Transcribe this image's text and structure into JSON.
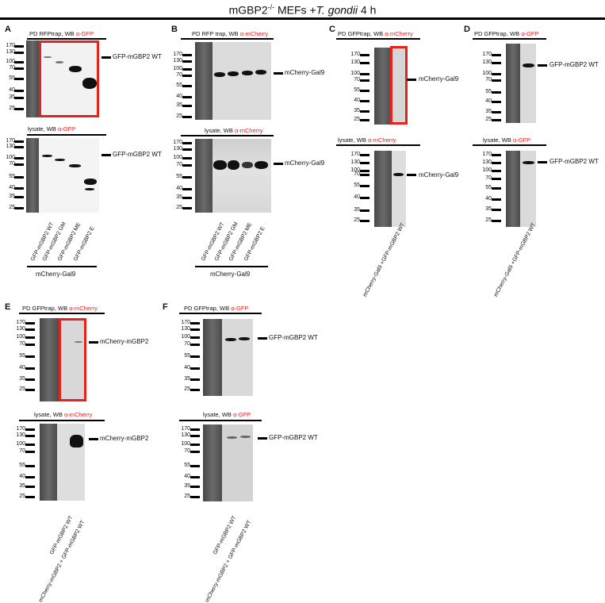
{
  "figure_title": {
    "prefix": "mGBP2",
    "sup": "-/-",
    "middle": " MEFs +",
    "italic": "T. gondii",
    "suffix": " 4 h"
  },
  "mw_set_a": [
    "170",
    "130",
    "100",
    "70",
    "55",
    "40",
    "35",
    "25"
  ],
  "panels": {
    "A": {
      "letter": "A",
      "top_prefix": "PD RFPtrap, WB ",
      "top_antibody": "α-GFP",
      "bottom_prefix": "lysate, WB ",
      "bottom_antibody": "α-GFP",
      "band_top": "GFP-mGBP2 WT",
      "band_bottom": "GFP-mGBP2 WT",
      "lanes": [
        "GFP-mGBP2  WT",
        "GFP-mGBP2  GM",
        "GFP-mGBP2  ME",
        "GFP-mGBP2  E"
      ],
      "group_label": "mCherry-Gal9"
    },
    "B": {
      "letter": "B",
      "top_prefix": "PD RFP trap, WB ",
      "top_antibody": "α-mCherry",
      "bottom_prefix": "lysate, WB ",
      "bottom_antibody": "α-mCherry",
      "band_top": "mCherry-Gal9",
      "band_bottom": "mCherry-Gal9",
      "lanes": [
        "GFP-mGBP2  WT",
        "GFP-mGBP2  GM",
        "GFP-mGBP2  ME",
        "GFP-mGBP2  E"
      ],
      "group_label": "mCherry-Gal9"
    },
    "C": {
      "letter": "C",
      "top_prefix": "PD GFPtrap, WB ",
      "top_antibody": "α-mCherry",
      "bottom_prefix": "lysate, WB ",
      "bottom_antibody": "α-mCherry",
      "band_top": "mCherry-Gal9",
      "band_bottom": "mCherry-Gal9",
      "lane": "mCherry-Gal9 +GFP-mGBP2  WT"
    },
    "D": {
      "letter": "D",
      "top_prefix": "PD GFPtrap, WB ",
      "top_antibody": "α-GFP",
      "bottom_prefix": "lysate, WB ",
      "bottom_antibody": "α-GFP",
      "band_top": "GFP-mGBP2 WT",
      "band_bottom": "GFP-mGBP2 WT",
      "lane": "mCherry-Gal9 +GFP-mGBP2 WT"
    },
    "E": {
      "letter": "E",
      "top_prefix": "PD GFPtrap, WB ",
      "top_antibody": "α-mCherry",
      "bottom_prefix": "lysate, WB ",
      "bottom_antibody": "α-mCherry",
      "band_top": "mCherry-mGBP2",
      "band_bottom": "mCherry-mGBP2",
      "lanes": [
        "GFP-mGBP2  WT",
        "mCherry-mGBP2 + GFP-mGBP2  WT"
      ]
    },
    "F": {
      "letter": "F",
      "top_prefix": "PD GFPtrap, WB ",
      "top_antibody": "α-GFP",
      "bottom_prefix": "lysate, WB ",
      "bottom_antibody": "α-GFP",
      "band_top": "GFP-mGBP2 WT",
      "band_bottom": "GFP-mGBP2 WT",
      "lanes": [
        "GFP-mGBP2  WT",
        "mCherry-mGBP2 + GFP-mGBP2  WT"
      ]
    }
  }
}
